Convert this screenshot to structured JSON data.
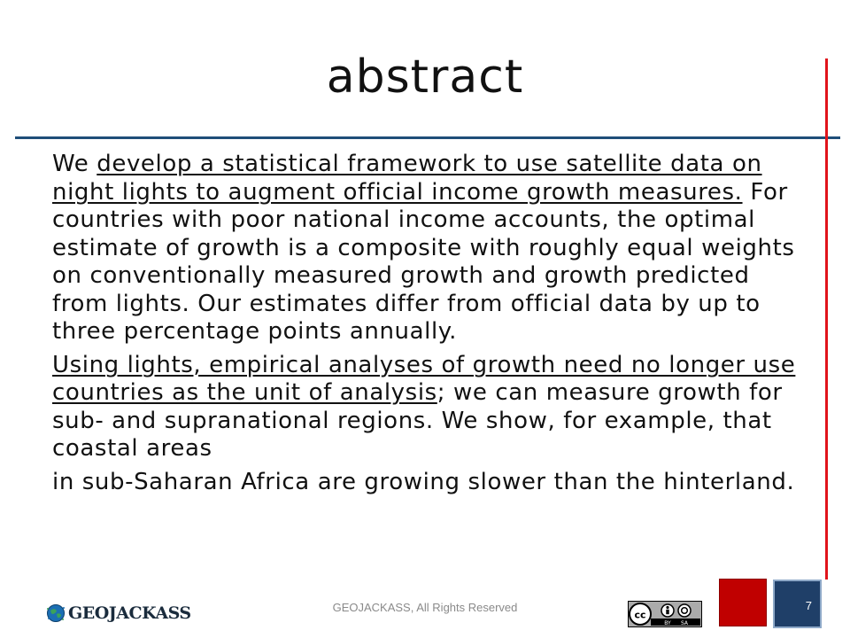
{
  "slide": {
    "title": "abstract",
    "paragraphs": [
      {
        "segments": [
          {
            "text": "We ",
            "underline": false
          },
          {
            "text": "develop a statistical framework to use satellite data on night lights to augment official income growth measures.",
            "underline": true
          },
          {
            "text": " For countries with poor national income accounts, the optimal estimate of growth is a composite with roughly equal weights on conventionally measured growth and growth predicted from lights. Our estimates differ  from official data by up to three percentage points annually.",
            "underline": false
          }
        ]
      },
      {
        "segments": [
          {
            "text": "Using lights, empirical analyses of growth need no longer use countries as the unit of analysis",
            "underline": true
          },
          {
            "text": "; we can measure growth for sub- and supranational regions. We show, for example, that coastal areas",
            "underline": false
          }
        ]
      },
      {
        "segments": [
          {
            "text": "in sub-Saharan Africa are growing slower than the hinterland.",
            "underline": false
          }
        ]
      }
    ]
  },
  "footer": {
    "logo_text": "GEOJACKASS",
    "copyright": "GEOJACKASS, All Rights Reserved",
    "license": {
      "by_label": "BY",
      "sa_label": "SA",
      "cc_label": "cc"
    },
    "page_number": "7"
  },
  "colors": {
    "title_rule": "#1f4e79",
    "accent_red": "#e0141b",
    "red_square": "#c00000",
    "page_box": "#1f3f68"
  }
}
